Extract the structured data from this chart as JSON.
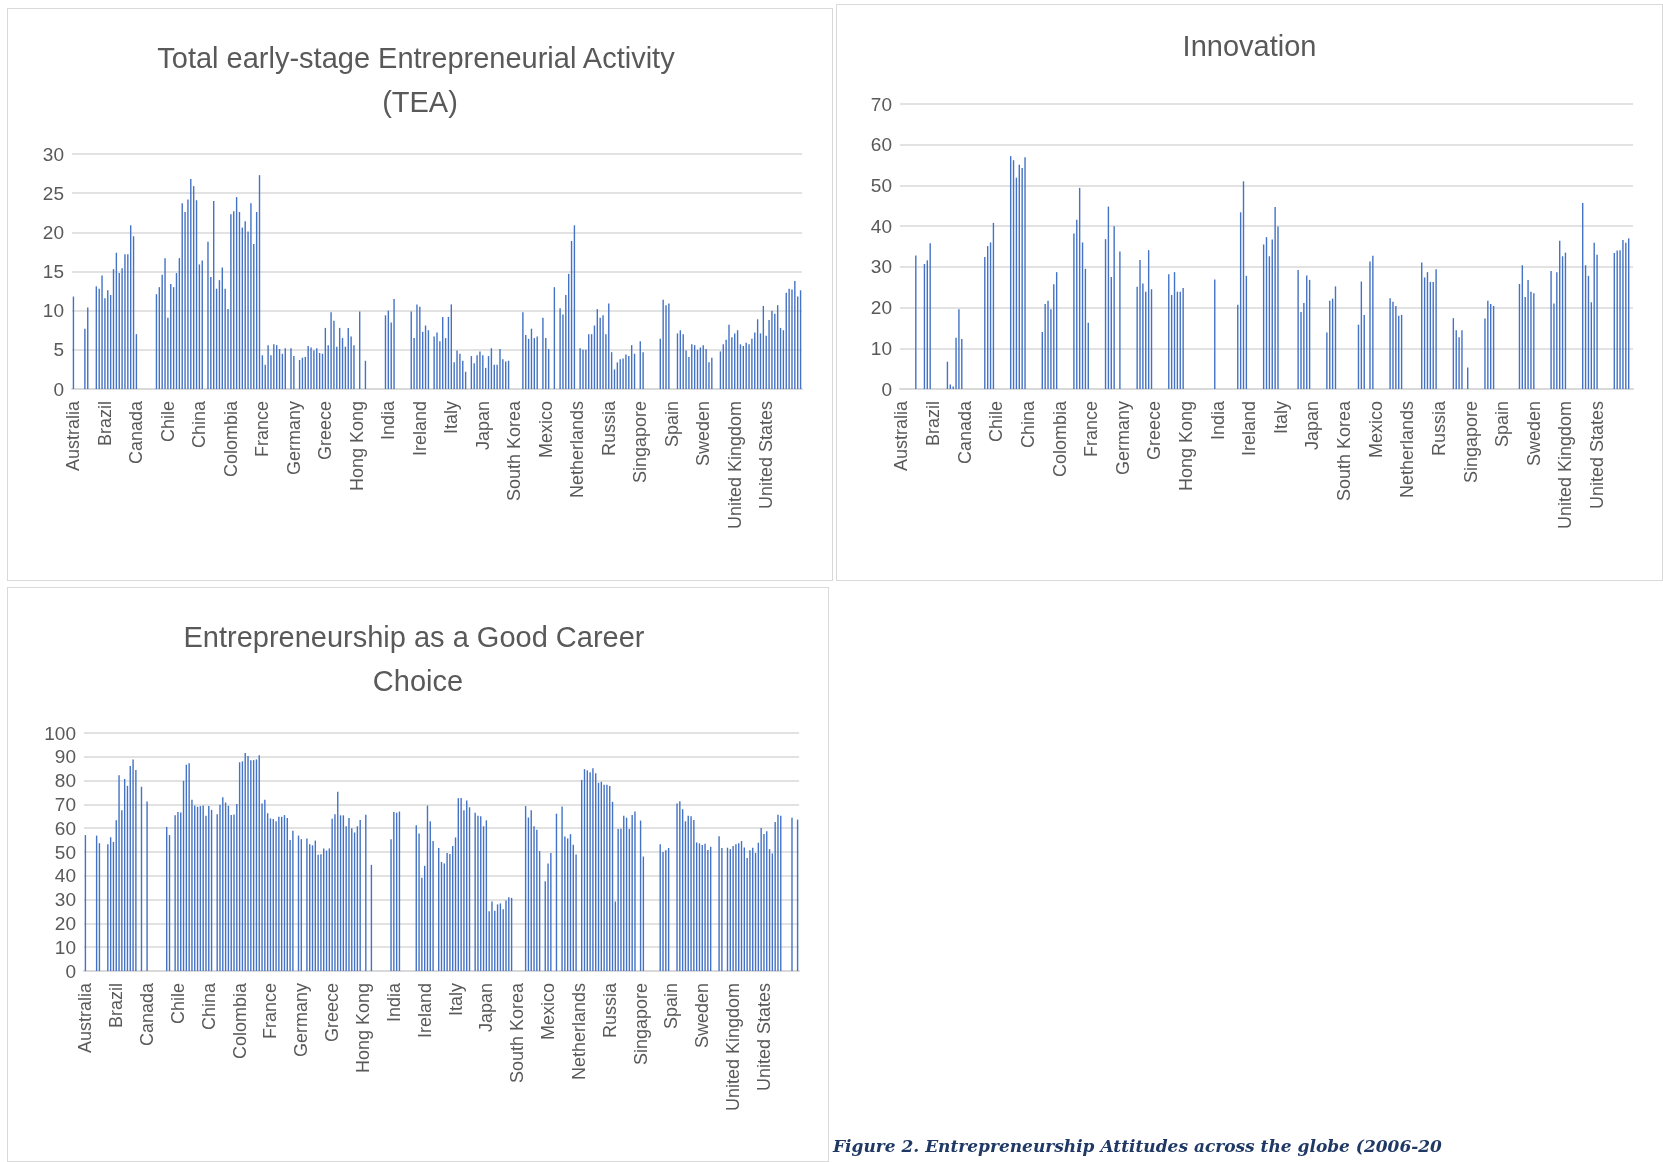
{
  "chart_data": [
    {
      "type": "bar",
      "title": "Total early-stage Entrepreneurial Activity (TEA)",
      "color": "#4472c4",
      "grid": "y",
      "ylim": [
        0,
        30
      ],
      "yticks": [
        0,
        5,
        10,
        15,
        20,
        25,
        30
      ],
      "categories": [
        "Australia",
        null,
        null,
        null,
        null,
        null,
        null,
        null,
        null,
        null,
        null,
        "Brazil",
        null,
        null,
        null,
        null,
        null,
        null,
        null,
        null,
        null,
        null,
        "Canada",
        null,
        null,
        null,
        null,
        null,
        null,
        null,
        null,
        null,
        null,
        "Chile",
        null,
        null,
        null,
        null,
        null,
        null,
        null,
        null,
        null,
        null,
        "China",
        null,
        null,
        null,
        null,
        null,
        null,
        null,
        null,
        null,
        null,
        "Colombia",
        null,
        null,
        null,
        null,
        null,
        null,
        null,
        null,
        null,
        null,
        "France",
        null,
        null,
        null,
        null,
        null,
        null,
        null,
        null,
        null,
        null,
        "Germany",
        null,
        null,
        null,
        null,
        null,
        null,
        null,
        null,
        null,
        null,
        "Greece",
        null,
        null,
        null,
        null,
        null,
        null,
        null,
        null,
        null,
        null,
        "Hong Kong",
        null,
        null,
        null,
        null,
        null,
        null,
        null,
        null,
        null,
        null,
        "India",
        null,
        null,
        null,
        null,
        null,
        null,
        null,
        null,
        null,
        null,
        "Ireland",
        null,
        null,
        null,
        null,
        null,
        null,
        null,
        null,
        null,
        null,
        "Italy",
        null,
        null,
        null,
        null,
        null,
        null,
        null,
        null,
        null,
        null,
        "Japan",
        null,
        null,
        null,
        null,
        null,
        null,
        null,
        null,
        null,
        null,
        "South Korea",
        null,
        null,
        null,
        null,
        null,
        null,
        null,
        null,
        null,
        null,
        "Mexico",
        null,
        null,
        null,
        null,
        null,
        null,
        null,
        null,
        null,
        null,
        "Netherlands",
        null,
        null,
        null,
        null,
        null,
        null,
        null,
        null,
        null,
        null,
        "Russia",
        null,
        null,
        null,
        null,
        null,
        null,
        null,
        null,
        null,
        null,
        "Singapore",
        null,
        null,
        null,
        null,
        null,
        null,
        null,
        null,
        null,
        null,
        "Spain",
        null,
        null,
        null,
        null,
        null,
        null,
        null,
        null,
        null,
        null,
        "Sweden",
        null,
        null,
        null,
        null,
        null,
        null,
        null,
        null,
        null,
        null,
        "United Kingdom",
        null,
        null,
        null,
        null,
        null,
        null,
        null,
        null,
        null,
        null,
        "United States",
        null,
        null,
        null,
        null,
        null,
        null,
        null,
        null,
        null,
        null,
        null,
        null
      ],
      "values": [
        11.8,
        null,
        null,
        null,
        7.7,
        10.4,
        null,
        null,
        13.1,
        12.8,
        14.5,
        11.6,
        12.6,
        12.0,
        15.3,
        17.4,
        14.8,
        15.4,
        17.2,
        17.2,
        20.9,
        19.5,
        7.0,
        null,
        null,
        null,
        null,
        null,
        null,
        12.1,
        13.0,
        14.6,
        16.7,
        9.1,
        13.4,
        13.0,
        14.8,
        16.7,
        23.7,
        22.6,
        24.2,
        26.8,
        25.9,
        24.1,
        15.9,
        16.4,
        null,
        18.8,
        14.3,
        24.0,
        12.8,
        13.9,
        15.5,
        12.8,
        10.2,
        22.3,
        22.7,
        24.5,
        22.6,
        20.6,
        21.4,
        20.1,
        23.7,
        18.5,
        22.6,
        27.3,
        4.3,
        3.1,
        5.6,
        4.3,
        5.7,
        5.6,
        5.1,
        4.5,
        5.2,
        null,
        5.2,
        4.2,
        null,
        3.7,
        4.0,
        4.1,
        5.5,
        5.3,
        4.9,
        5.2,
        4.6,
        4.5,
        7.8,
        5.6,
        9.8,
        8.7,
        5.4,
        7.8,
        6.5,
        5.4,
        7.8,
        6.7,
        5.6,
        null,
        9.9,
        null,
        3.6,
        null,
        null,
        null,
        null,
        null,
        null,
        9.4,
        10.0,
        8.5,
        11.5,
        null,
        null,
        null,
        null,
        null,
        9.9,
        6.5,
        10.8,
        10.5,
        7.3,
        8.1,
        7.5,
        null,
        6.7,
        7.2,
        6.1,
        9.2,
        6.5,
        9.2,
        10.8,
        3.4,
        4.9,
        4.5,
        3.6,
        2.2,
        null,
        4.2,
        3.3,
        4.3,
        4.8,
        4.3,
        2.7,
        4.2,
        5.2,
        3.1,
        3.1,
        5.1,
        3.8,
        3.5,
        3.6,
        null,
        null,
        null,
        null,
        9.8,
        6.9,
        6.4,
        7.7,
        6.5,
        6.7,
        null,
        9.1,
        6.5,
        5.1,
        null,
        13.0,
        null,
        10.3,
        9.5,
        12.0,
        14.7,
        18.9,
        20.9,
        null,
        5.2,
        5.0,
        5.0,
        7.0,
        7.0,
        8.1,
        10.2,
        9.1,
        9.4,
        7.0,
        10.9,
        4.7,
        2.5,
        3.4,
        3.8,
        3.9,
        4.4,
        4.2,
        5.6,
        4.5,
        null,
        6.1,
        4.7,
        null,
        null,
        null,
        null,
        null,
        6.4,
        11.4,
        10.7,
        10.9,
        null,
        null,
        7.1,
        7.5,
        7.0,
        4.9,
        4.1,
        5.7,
        5.6,
        5.0,
        5.3,
        5.6,
        5.1,
        3.4,
        4.0,
        null,
        null,
        4.8,
        5.7,
        6.3,
        8.2,
        6.6,
        7.1,
        7.5,
        5.7,
        5.5,
        5.9,
        5.7,
        6.4,
        7.2,
        8.9,
        7.1,
        10.6,
        6.8,
        8.8,
        10.0,
        9.6,
        10.7,
        7.8,
        7.5,
        12.3,
        12.8,
        12.7,
        13.8,
        11.8,
        12.6
      ]
    },
    {
      "type": "bar",
      "title": "Innovation",
      "color": "#4472c4",
      "grid": "y",
      "ylim": [
        0,
        70
      ],
      "yticks": [
        0,
        10,
        20,
        30,
        40,
        50,
        60,
        70
      ],
      "categories": [
        "Australia",
        null,
        null,
        null,
        null,
        null,
        null,
        null,
        null,
        null,
        null,
        "Brazil",
        null,
        null,
        null,
        null,
        null,
        null,
        null,
        null,
        null,
        null,
        "Canada",
        null,
        null,
        null,
        null,
        null,
        null,
        null,
        null,
        null,
        null,
        "Chile",
        null,
        null,
        null,
        null,
        null,
        null,
        null,
        null,
        null,
        null,
        "China",
        null,
        null,
        null,
        null,
        null,
        null,
        null,
        null,
        null,
        null,
        "Colombia",
        null,
        null,
        null,
        null,
        null,
        null,
        null,
        null,
        null,
        null,
        "France",
        null,
        null,
        null,
        null,
        null,
        null,
        null,
        null,
        null,
        null,
        "Germany",
        null,
        null,
        null,
        null,
        null,
        null,
        null,
        null,
        null,
        null,
        "Greece",
        null,
        null,
        null,
        null,
        null,
        null,
        null,
        null,
        null,
        null,
        "Hong Kong",
        null,
        null,
        null,
        null,
        null,
        null,
        null,
        null,
        null,
        null,
        "India",
        null,
        null,
        null,
        null,
        null,
        null,
        null,
        null,
        null,
        null,
        "Ireland",
        null,
        null,
        null,
        null,
        null,
        null,
        null,
        null,
        null,
        null,
        "Italy",
        null,
        null,
        null,
        null,
        null,
        null,
        null,
        null,
        null,
        null,
        "Japan",
        null,
        null,
        null,
        null,
        null,
        null,
        null,
        null,
        null,
        null,
        "South Korea",
        null,
        null,
        null,
        null,
        null,
        null,
        null,
        null,
        null,
        null,
        "Mexico",
        null,
        null,
        null,
        null,
        null,
        null,
        null,
        null,
        null,
        null,
        "Netherlands",
        null,
        null,
        null,
        null,
        null,
        null,
        null,
        null,
        null,
        null,
        "Russia",
        null,
        null,
        null,
        null,
        null,
        null,
        null,
        null,
        null,
        null,
        "Singapore",
        null,
        null,
        null,
        null,
        null,
        null,
        null,
        null,
        null,
        null,
        "Spain",
        null,
        null,
        null,
        null,
        null,
        null,
        null,
        null,
        null,
        null,
        "Sweden",
        null,
        null,
        null,
        null,
        null,
        null,
        null,
        null,
        null,
        null,
        "United Kingdom",
        null,
        null,
        null,
        null,
        null,
        null,
        null,
        null,
        null,
        null,
        "United States",
        null,
        null,
        null,
        null,
        null,
        null,
        null,
        null,
        null,
        null,
        null,
        null
      ],
      "values": [
        null,
        null,
        null,
        null,
        null,
        32.8,
        null,
        null,
        30.7,
        31.6,
        35.8,
        null,
        null,
        null,
        null,
        null,
        6.7,
        1.1,
        0.6,
        12.6,
        19.6,
        12.3,
        null,
        null,
        null,
        null,
        null,
        null,
        null,
        32.4,
        35.1,
        36.0,
        40.8,
        null,
        null,
        null,
        null,
        null,
        57.2,
        56.2,
        51.9,
        55.1,
        54.3,
        56.9,
        null,
        null,
        null,
        null,
        null,
        14.0,
        20.9,
        21.7,
        19.6,
        25.7,
        28.7,
        null,
        null,
        null,
        null,
        null,
        38.2,
        41.6,
        49.4,
        36.0,
        29.5,
        16.3,
        null,
        null,
        null,
        null,
        null,
        36.8,
        44.8,
        27.5,
        40.0,
        null,
        33.8,
        null,
        null,
        null,
        null,
        null,
        25.1,
        31.7,
        25.9,
        23.9,
        34.1,
        24.5,
        null,
        null,
        null,
        null,
        null,
        28.2,
        23.1,
        28.7,
        23.9,
        23.9,
        24.8,
        null,
        null,
        null,
        null,
        null,
        null,
        null,
        null,
        null,
        null,
        26.9,
        null,
        null,
        null,
        null,
        null,
        null,
        null,
        20.7,
        43.4,
        51.0,
        27.8,
        null,
        null,
        null,
        null,
        null,
        35.5,
        37.3,
        32.6,
        36.7,
        44.7,
        39.9,
        null,
        null,
        null,
        null,
        null,
        null,
        29.2,
        18.9,
        21.1,
        27.9,
        26.8,
        null,
        null,
        null,
        null,
        null,
        13.9,
        21.7,
        22.2,
        25.2,
        null,
        null,
        null,
        null,
        null,
        null,
        null,
        15.8,
        26.4,
        18.2,
        null,
        31.3,
        32.7,
        null,
        null,
        null,
        null,
        null,
        22.3,
        21.4,
        20.4,
        18.0,
        18.2,
        null,
        null,
        null,
        null,
        null,
        null,
        31.1,
        27.4,
        28.7,
        26.3,
        26.3,
        29.4,
        null,
        null,
        null,
        null,
        null,
        17.4,
        14.4,
        12.7,
        14.4,
        null,
        5.3,
        null,
        null,
        null,
        null,
        null,
        17.3,
        21.7,
        20.9,
        20.4,
        null,
        null,
        null,
        null,
        null,
        null,
        null,
        null,
        25.8,
        30.4,
        22.6,
        26.8,
        23.9,
        23.5,
        null,
        null,
        null,
        null,
        null,
        29.0,
        21.0,
        28.7,
        36.4,
        32.6,
        33.5,
        null,
        null,
        null,
        null,
        null,
        45.7,
        30.4,
        27.8,
        21.3,
        35.9,
        33.0,
        null,
        null,
        null,
        null,
        null,
        33.4,
        34.0,
        34.1,
        36.6,
        35.9,
        37.0,
        null
      ]
    },
    {
      "type": "bar",
      "title": "Entrepreneurship as a Good Career Choice",
      "color": "#4472c4",
      "grid": "y",
      "ylim": [
        0,
        100
      ],
      "yticks": [
        0,
        10,
        20,
        30,
        40,
        50,
        60,
        70,
        80,
        90,
        100
      ],
      "annotations": [
        "Figure 2. Entrepreneurship Attitudes across the globe (2006-20"
      ],
      "categories": [
        "Australia",
        null,
        null,
        null,
        null,
        null,
        null,
        null,
        null,
        null,
        null,
        "Brazil",
        null,
        null,
        null,
        null,
        null,
        null,
        null,
        null,
        null,
        null,
        "Canada",
        null,
        null,
        null,
        null,
        null,
        null,
        null,
        null,
        null,
        null,
        "Chile",
        null,
        null,
        null,
        null,
        null,
        null,
        null,
        null,
        null,
        null,
        "China",
        null,
        null,
        null,
        null,
        null,
        null,
        null,
        null,
        null,
        null,
        "Colombia",
        null,
        null,
        null,
        null,
        null,
        null,
        null,
        null,
        null,
        null,
        "France",
        null,
        null,
        null,
        null,
        null,
        null,
        null,
        null,
        null,
        null,
        "Germany",
        null,
        null,
        null,
        null,
        null,
        null,
        null,
        null,
        null,
        null,
        "Greece",
        null,
        null,
        null,
        null,
        null,
        null,
        null,
        null,
        null,
        null,
        "Hong Kong",
        null,
        null,
        null,
        null,
        null,
        null,
        null,
        null,
        null,
        null,
        "India",
        null,
        null,
        null,
        null,
        null,
        null,
        null,
        null,
        null,
        null,
        "Ireland",
        null,
        null,
        null,
        null,
        null,
        null,
        null,
        null,
        null,
        null,
        "Italy",
        null,
        null,
        null,
        null,
        null,
        null,
        null,
        null,
        null,
        null,
        "Japan",
        null,
        null,
        null,
        null,
        null,
        null,
        null,
        null,
        null,
        null,
        "South Korea",
        null,
        null,
        null,
        null,
        null,
        null,
        null,
        null,
        null,
        null,
        "Mexico",
        null,
        null,
        null,
        null,
        null,
        null,
        null,
        null,
        null,
        null,
        "Netherlands",
        null,
        null,
        null,
        null,
        null,
        null,
        null,
        null,
        null,
        null,
        "Russia",
        null,
        null,
        null,
        null,
        null,
        null,
        null,
        null,
        null,
        null,
        "Singapore",
        null,
        null,
        null,
        null,
        null,
        null,
        null,
        null,
        null,
        null,
        "Spain",
        null,
        null,
        null,
        null,
        null,
        null,
        null,
        null,
        null,
        null,
        "Sweden",
        null,
        null,
        null,
        null,
        null,
        null,
        null,
        null,
        null,
        null,
        "United Kingdom",
        null,
        null,
        null,
        null,
        null,
        null,
        null,
        null,
        null,
        null,
        "United States",
        null,
        null,
        null,
        null,
        null,
        null,
        null,
        null,
        null,
        null,
        null,
        null
      ],
      "values": [
        57.1,
        null,
        null,
        null,
        56.9,
        53.7,
        null,
        null,
        53.3,
        56.2,
        54.2,
        63.3,
        82.3,
        67.5,
        80.7,
        77.8,
        86.1,
        88.9,
        84.5,
        null,
        77.4,
        null,
        71.2,
        null,
        null,
        null,
        null,
        null,
        null,
        60.5,
        57.1,
        null,
        65.4,
        66.8,
        66.6,
        79.9,
        86.7,
        87.3,
        72.0,
        69.5,
        69.0,
        69.3,
        69.5,
        65.2,
        69.3,
        67.7,
        null,
        65.9,
        69.9,
        73.0,
        70.8,
        69.4,
        65.5,
        65.8,
        70.2,
        87.7,
        88.1,
        91.6,
        90.3,
        88.5,
        88.6,
        88.9,
        90.7,
        70.4,
        72.0,
        66.3,
        64.1,
        63.9,
        62.9,
        64.8,
        64.8,
        65.5,
        64.3,
        55.0,
        58.9,
        null,
        56.9,
        55.4,
        null,
        55.7,
        53.3,
        52.8,
        54.8,
        48.8,
        49.1,
        51.5,
        50.6,
        51.5,
        64.0,
        65.9,
        75.3,
        65.4,
        65.4,
        60.8,
        64.3,
        60.0,
        58.2,
        60.8,
        63.4,
        null,
        65.7,
        null,
        44.6,
        null,
        null,
        null,
        null,
        null,
        null,
        55.4,
        66.8,
        66.5,
        67.0,
        null,
        null,
        null,
        null,
        null,
        61.2,
        57.8,
        39.2,
        44.2,
        69.5,
        62.9,
        54.6,
        null,
        51.7,
        45.8,
        45.2,
        49.6,
        49.2,
        52.5,
        56.1,
        72.6,
        72.7,
        67.5,
        71.6,
        68.8,
        null,
        66.5,
        65.2,
        65.0,
        60.8,
        63.3,
        25.1,
        29.2,
        25.3,
        28.0,
        28.4,
        25.9,
        29.6,
        31.0,
        30.7,
        null,
        null,
        null,
        null,
        69.3,
        64.5,
        67.5,
        60.8,
        59.3,
        50.4,
        null,
        37.7,
        45.2,
        49.6,
        null,
        66.1,
        null,
        69.1,
        56.5,
        55.7,
        57.5,
        53.0,
        49.0,
        null,
        80.3,
        84.8,
        84.3,
        83.5,
        85.2,
        83.1,
        79.1,
        79.5,
        78.3,
        78.3,
        77.7,
        71.1,
        29.2,
        59.7,
        59.8,
        65.2,
        64.4,
        59.7,
        65.5,
        67.0,
        null,
        63.2,
        48.1,
        null,
        null,
        null,
        null,
        null,
        53.3,
        50.0,
        50.7,
        51.7,
        null,
        null,
        70.4,
        71.3,
        68.0,
        62.9,
        65.2,
        65.0,
        63.4,
        54.0,
        53.6,
        52.9,
        53.5,
        50.8,
        52.2,
        null,
        null,
        56.6,
        51.7,
        null,
        51.8,
        51.2,
        52.5,
        53.3,
        53.7,
        54.6,
        51.9,
        47.5,
        50.7,
        51.8,
        49.6,
        53.9,
        60.1,
        57.6,
        58.7,
        51.2,
        49.4,
        62.6,
        65.7,
        65.2,
        null,
        null,
        null,
        64.4,
        null,
        63.6
      ]
    }
  ]
}
